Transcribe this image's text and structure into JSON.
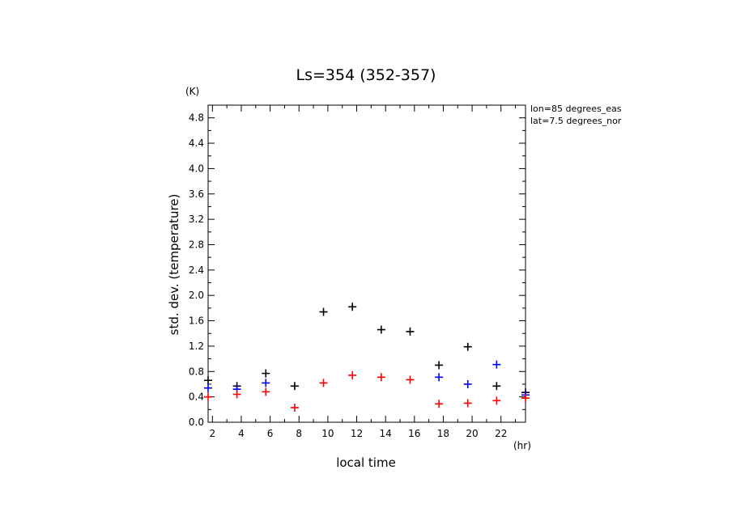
{
  "chart_data": {
    "type": "scatter",
    "title": "Ls=354 (352-357)",
    "xlabel": "local time",
    "ylabel": "std. dev. (temperature)",
    "x_unit": "(hr)",
    "y_unit": "(K)",
    "xlim": [
      1.7,
      23.7
    ],
    "ylim": [
      0,
      5.0
    ],
    "xticks": [
      2,
      4,
      6,
      8,
      10,
      12,
      14,
      16,
      18,
      20,
      22
    ],
    "yticks": [
      "0.0",
      "0.4",
      "0.8",
      "1.2",
      "1.6",
      "2.0",
      "2.4",
      "2.8",
      "3.2",
      "3.6",
      "4.0",
      "4.4",
      "4.8"
    ],
    "grid": false,
    "legend": "none",
    "annotations": [
      "lon=85 degrees_eas",
      "lat=7.5 degrees_nor"
    ],
    "series": [
      {
        "color": "#000000",
        "x": [
          1.7,
          3.7,
          5.7,
          7.7,
          9.7,
          11.7,
          13.7,
          15.7,
          17.7,
          19.7,
          21.7,
          23.7
        ],
        "values": [
          0.66,
          0.57,
          0.77,
          0.57,
          1.74,
          1.82,
          1.46,
          1.43,
          0.9,
          1.19,
          0.57,
          0.47
        ]
      },
      {
        "color": "#0000ff",
        "x": [
          1.7,
          3.7,
          5.7,
          17.7,
          19.7,
          21.7,
          23.7
        ],
        "values": [
          0.54,
          0.52,
          0.62,
          0.71,
          0.6,
          0.91,
          0.43
        ]
      },
      {
        "color": "#ff0000",
        "x": [
          1.7,
          3.7,
          5.7,
          7.7,
          9.7,
          11.7,
          13.7,
          15.7,
          17.7,
          19.7,
          21.7,
          23.7
        ],
        "values": [
          0.4,
          0.44,
          0.48,
          0.23,
          0.62,
          0.74,
          0.71,
          0.67,
          0.29,
          0.3,
          0.34,
          0.38
        ]
      }
    ]
  }
}
